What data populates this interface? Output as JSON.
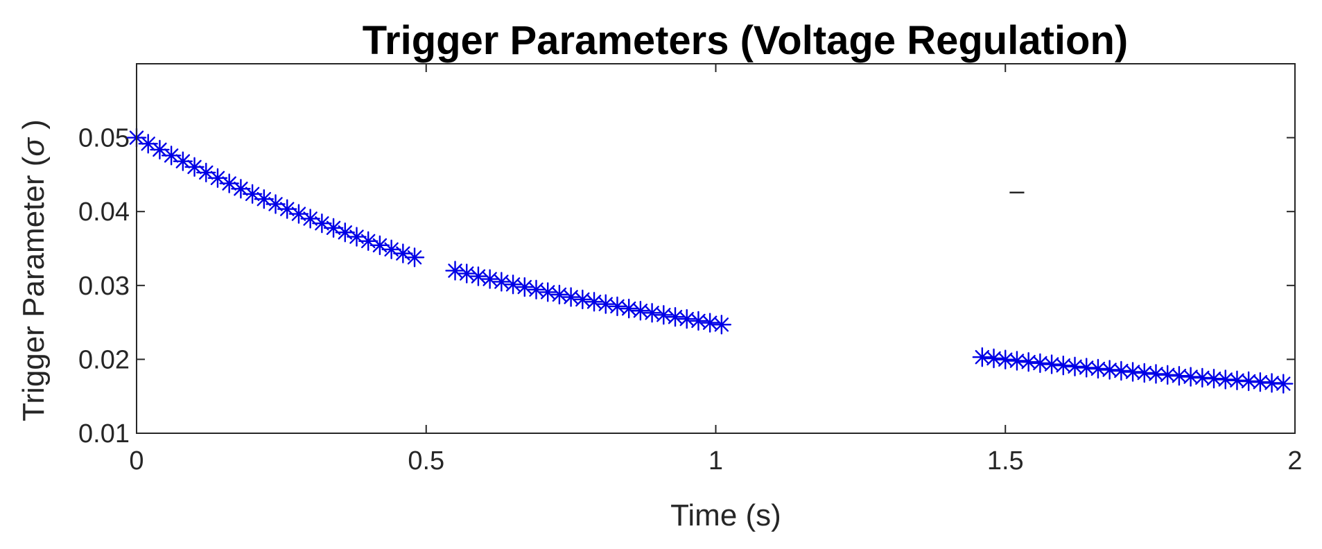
{
  "chart_data": {
    "type": "scatter",
    "title": "Trigger Parameters (Voltage Regulation)",
    "xlabel": "Time (s)",
    "ylabel": "Trigger Parameter",
    "ylabel_symbol": "σ",
    "xlim": [
      0,
      2
    ],
    "ylim": [
      0.01,
      0.06
    ],
    "xticks": [
      0,
      0.5,
      1,
      1.5,
      2
    ],
    "xtick_labels": [
      "0",
      "0.5",
      "1",
      "1.5",
      "2"
    ],
    "yticks": [
      0.01,
      0.02,
      0.03,
      0.04,
      0.05
    ],
    "ytick_labels": [
      "0.01",
      "0.02",
      "0.03",
      "0.04",
      "0.05"
    ],
    "grid": false,
    "marker": "asterisk",
    "color": "#0000e6",
    "segments": [
      {
        "x_start": 0.0,
        "x_end": 0.48,
        "step": 0.02,
        "y_start": 0.05,
        "y_end": 0.0338
      },
      {
        "x_start": 0.55,
        "x_end": 1.01,
        "step": 0.02,
        "y_start": 0.032,
        "y_end": 0.0247
      },
      {
        "x_start": 1.46,
        "x_end": 1.98,
        "step": 0.02,
        "y_start": 0.0203,
        "y_end": 0.0167
      }
    ],
    "annotations": [
      {
        "text": "–",
        "x": 1.52,
        "y": 0.0428
      }
    ]
  }
}
